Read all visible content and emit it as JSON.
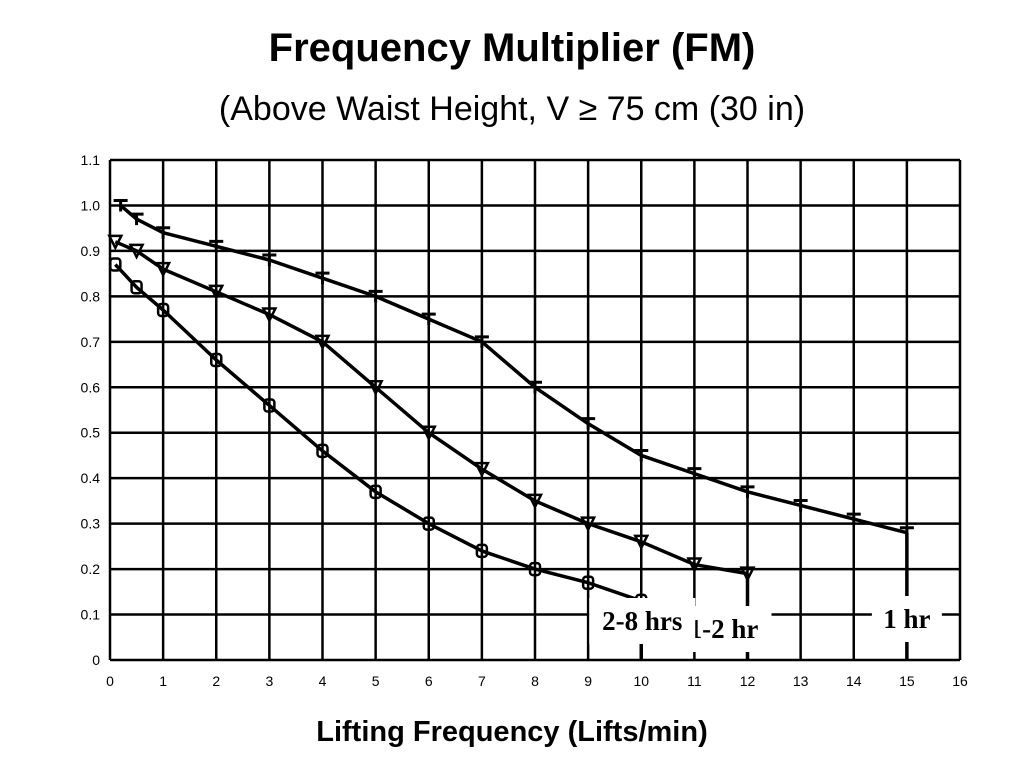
{
  "chart_data": {
    "type": "line",
    "title": "Frequency Multiplier (FM)",
    "subtitle": "(Above Waist Height, V ≥ 75 cm (30 in)",
    "xlabel": "Lifting Frequency (Lifts/min)",
    "ylabel": "",
    "xlim": [
      0,
      16
    ],
    "ylim": [
      0,
      1.1
    ],
    "x_ticks": [
      "0",
      "1",
      "2",
      "3",
      "4",
      "5",
      "6",
      "7",
      "8",
      "9",
      "10",
      "11",
      "12",
      "13",
      "14",
      "15",
      "16"
    ],
    "y_ticks": [
      "0",
      "0.1",
      "0.2",
      "0.3",
      "0.4",
      "0.5",
      "0.6",
      "0.7",
      "0.8",
      "0.9",
      "1.0",
      "1.1"
    ],
    "grid": true,
    "series": [
      {
        "name": "1 hr",
        "x": [
          0.2,
          0.5,
          1,
          2,
          3,
          4,
          5,
          6,
          7,
          8,
          9,
          10,
          11,
          12,
          13,
          14,
          15
        ],
        "y": [
          1.0,
          0.97,
          0.94,
          0.91,
          0.88,
          0.84,
          0.8,
          0.75,
          0.7,
          0.6,
          0.52,
          0.45,
          0.41,
          0.37,
          0.34,
          0.31,
          0.28
        ],
        "end": 15
      },
      {
        "name": "1-2 hr",
        "x": [
          0.1,
          0.5,
          1,
          2,
          3,
          4,
          5,
          6,
          7,
          8,
          9,
          10,
          11,
          12
        ],
        "y": [
          0.92,
          0.9,
          0.86,
          0.81,
          0.76,
          0.7,
          0.6,
          0.5,
          0.42,
          0.35,
          0.3,
          0.26,
          0.21,
          0.19
        ],
        "end": 12
      },
      {
        "name": "2-8 hrs",
        "x": [
          0.1,
          0.5,
          1,
          2,
          3,
          4,
          5,
          6,
          7,
          8,
          9,
          10
        ],
        "y": [
          0.87,
          0.82,
          0.77,
          0.66,
          0.56,
          0.46,
          0.37,
          0.3,
          0.24,
          0.2,
          0.17,
          0.13
        ],
        "end": 10
      }
    ]
  }
}
